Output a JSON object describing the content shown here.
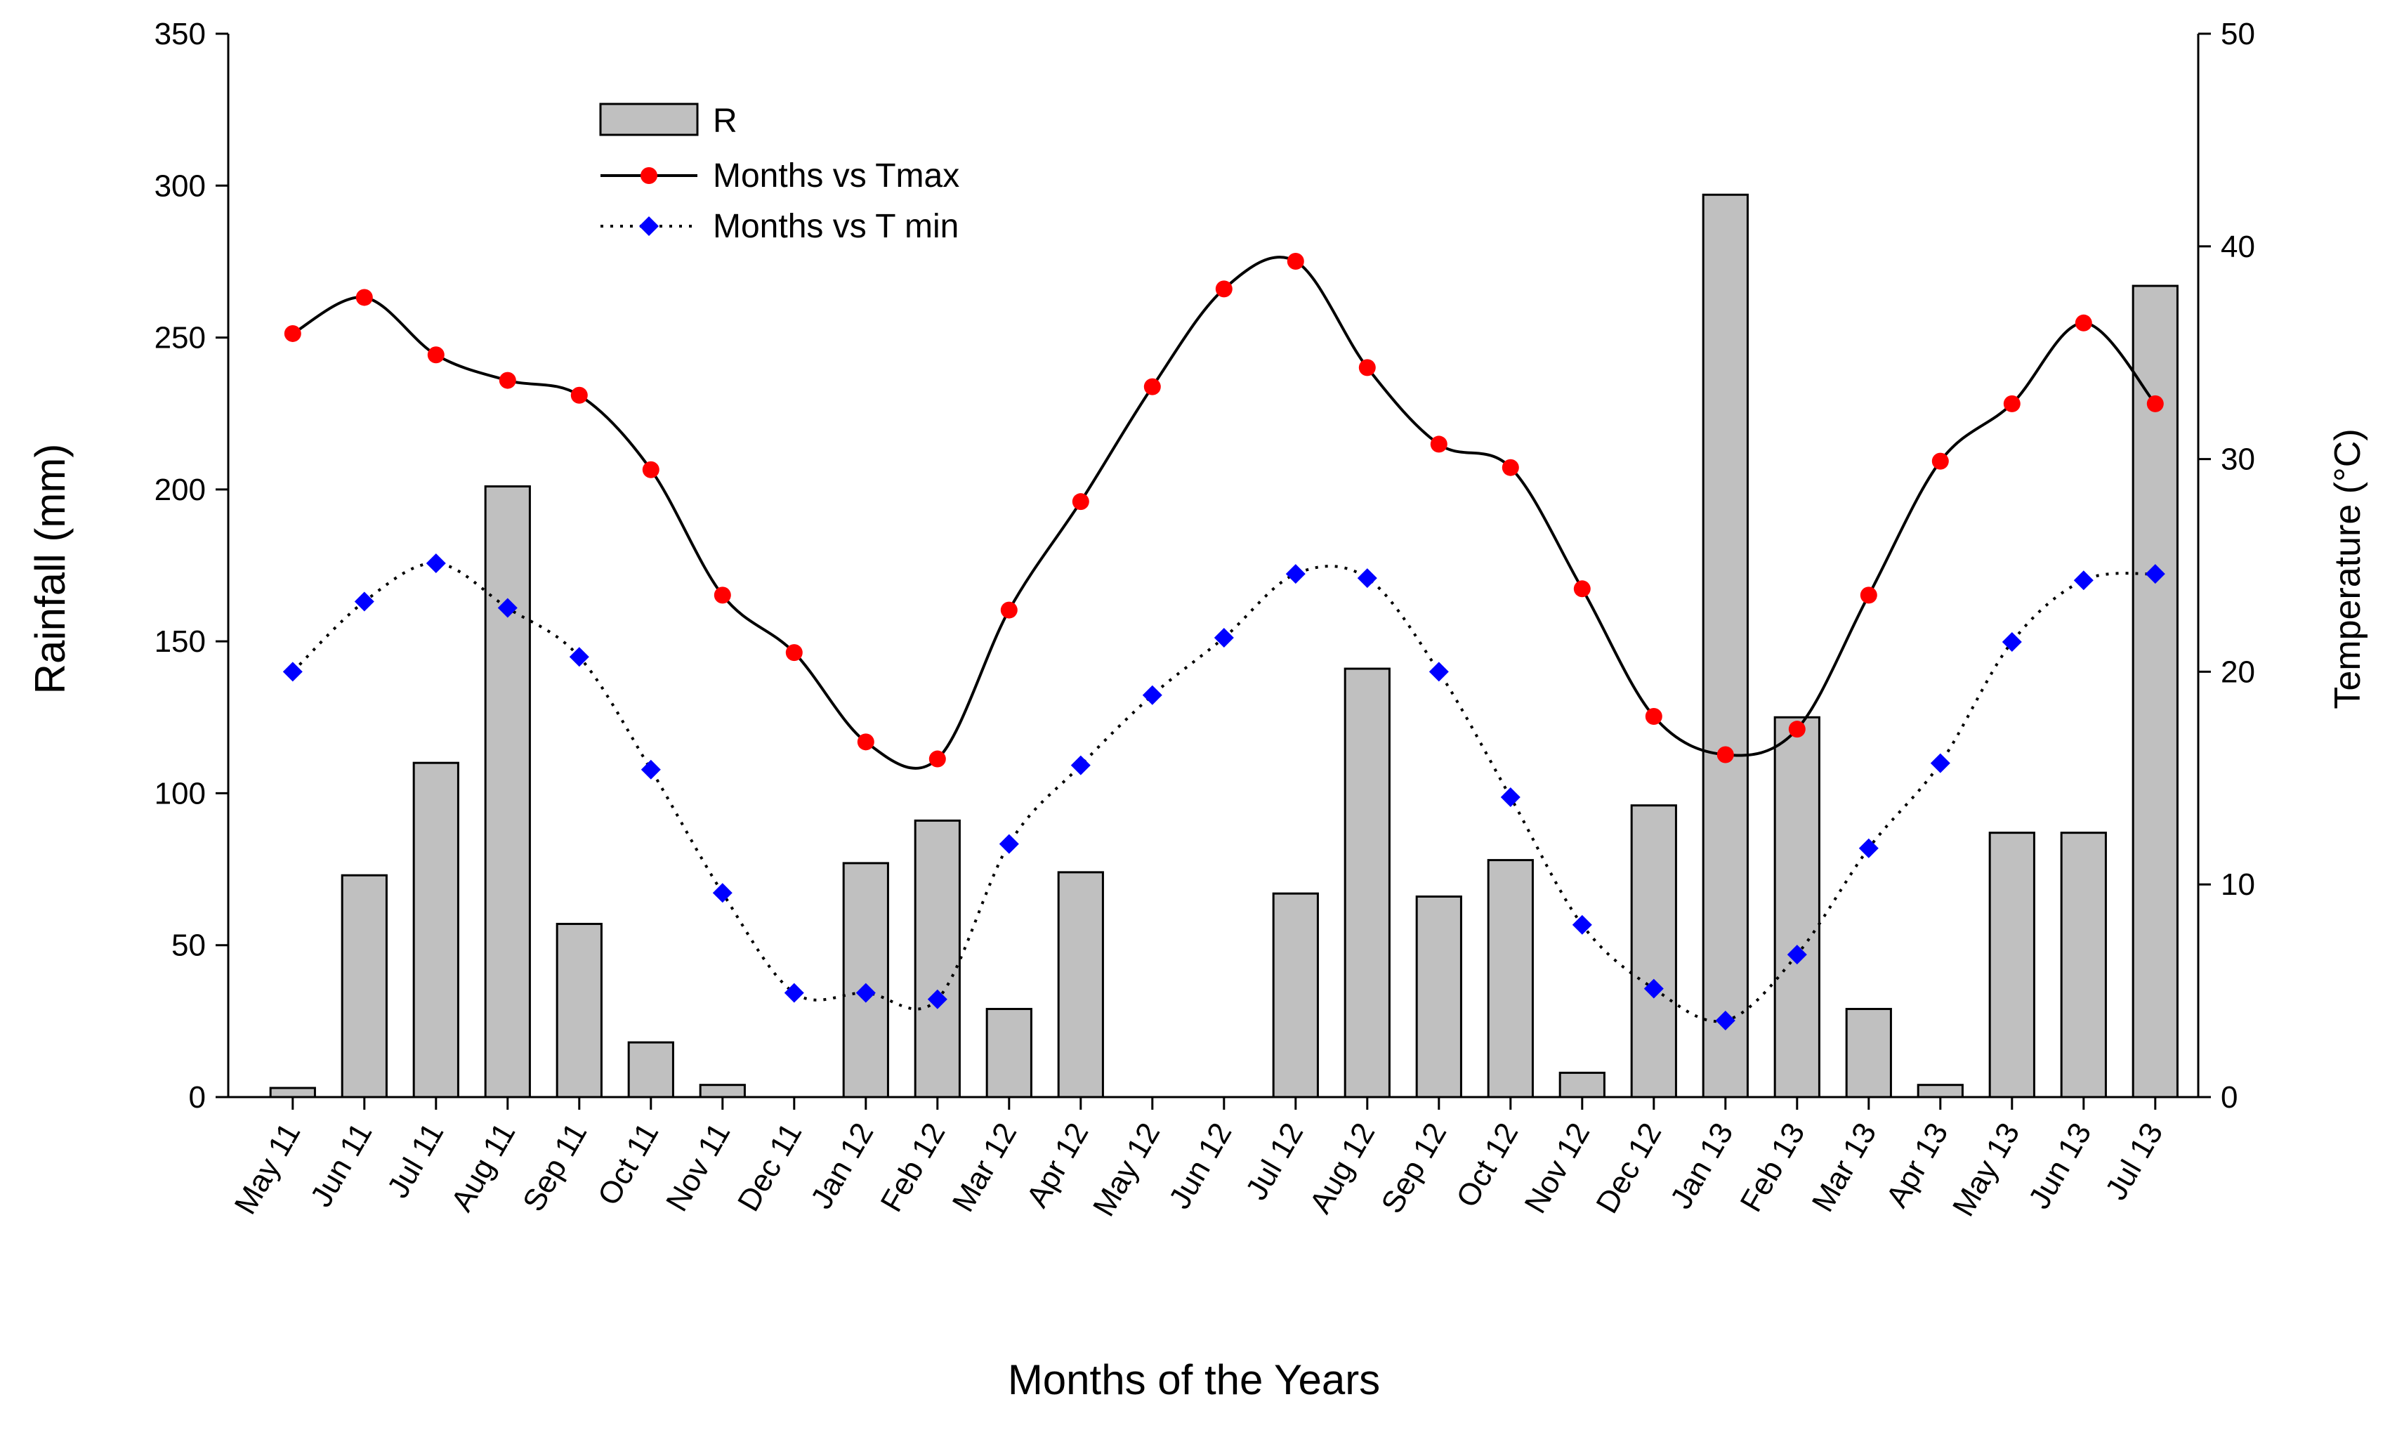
{
  "chart_data": {
    "type": "bar+line",
    "xlabel": "Months of the Years",
    "ylabel_left": "Rainfall (mm)",
    "ylabel_right": "Temperature (°C)",
    "ylim_left": [
      0,
      350
    ],
    "yticks_left": [
      0,
      50,
      100,
      150,
      200,
      250,
      300,
      350
    ],
    "ylim_right": [
      0,
      50
    ],
    "yticks_right": [
      0,
      10,
      20,
      30,
      40,
      50
    ],
    "categories": [
      "May 11",
      "Jun 11",
      "Jul 11",
      "Aug 11",
      "Sep 11",
      "Oct 11",
      "Nov 11",
      "Dec 11",
      "Jan 12",
      "Feb 12",
      "Mar 12",
      "Apr 12",
      "May 12",
      "Jun 12",
      "Jul 12",
      "Aug 12",
      "Sep 12",
      "Oct 12",
      "Nov 12",
      "Dec 12",
      "Jan 13",
      "Feb 13",
      "Mar 13",
      "Apr 13",
      "May 13",
      "Jun 13",
      "Jul 13"
    ],
    "series": [
      {
        "name": "R",
        "type": "bar",
        "axis": "left",
        "color": "#c0c0c0",
        "values": [
          3,
          73,
          110,
          201,
          57,
          18,
          4,
          0,
          77,
          91,
          29,
          74,
          0,
          0,
          67,
          141,
          66,
          78,
          8,
          96,
          297,
          125,
          29,
          4,
          87,
          87,
          267
        ]
      },
      {
        "name": "Months vs Tmax",
        "type": "line",
        "axis": "right",
        "color": "#ff0000",
        "line_color": "#000000",
        "line_style": "solid",
        "values": [
          35.9,
          37.6,
          34.9,
          33.7,
          33.0,
          29.5,
          23.6,
          20.9,
          16.7,
          15.9,
          22.9,
          28.0,
          33.4,
          38.0,
          39.3,
          34.3,
          30.7,
          29.6,
          23.9,
          17.9,
          16.1,
          17.3,
          23.6,
          29.9,
          32.6,
          36.4,
          32.6
        ]
      },
      {
        "name": "Months vs T min",
        "type": "line",
        "axis": "right",
        "color": "#0000ff",
        "line_color": "#000000",
        "line_style": "dotted",
        "values": [
          20.0,
          23.3,
          25.1,
          23.0,
          20.7,
          15.4,
          9.6,
          4.9,
          4.9,
          4.6,
          11.9,
          15.6,
          18.9,
          21.6,
          24.6,
          24.4,
          20.0,
          14.1,
          8.1,
          5.1,
          3.6,
          6.7,
          11.7,
          15.7,
          21.4,
          24.3,
          24.6
        ]
      }
    ],
    "legend": {
      "position": "top-left",
      "entries": [
        "R",
        "Months vs Tmax",
        "Months vs T min"
      ]
    }
  }
}
